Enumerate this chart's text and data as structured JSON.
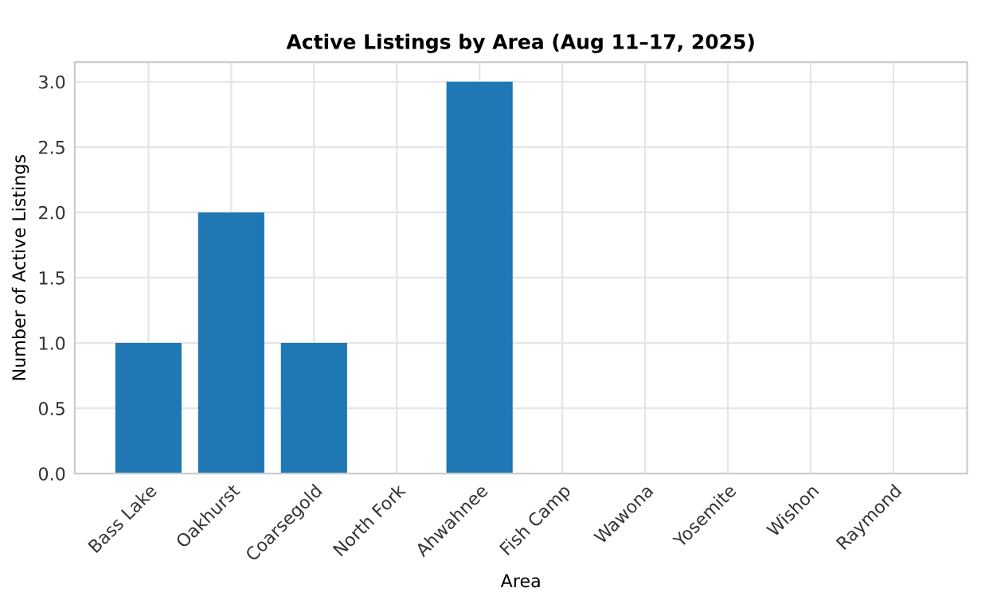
{
  "chart_data": {
    "type": "bar",
    "title": "Active Listings by Area (Aug 11–17, 2025)",
    "xlabel": "Area",
    "ylabel": "Number of Active Listings",
    "categories": [
      "Bass Lake",
      "Oakhurst",
      "Coarsegold",
      "North Fork",
      "Ahwahnee",
      "Fish Camp",
      "Wawona",
      "Yosemite",
      "Wishon",
      "Raymond"
    ],
    "values": [
      1,
      2,
      1,
      0,
      3,
      0,
      0,
      0,
      0,
      0
    ],
    "color": "#1f77b4",
    "ylim": [
      0,
      3.15
    ],
    "yticks": [
      {
        "value": 0,
        "label": "0.0"
      },
      0.5,
      {
        "value": 1,
        "label": "1.0"
      },
      1.5,
      {
        "value": 2,
        "label": "2.0"
      },
      2.5,
      {
        "value": 3,
        "label": "3.0"
      }
    ],
    "grid": true,
    "legend": false
  }
}
